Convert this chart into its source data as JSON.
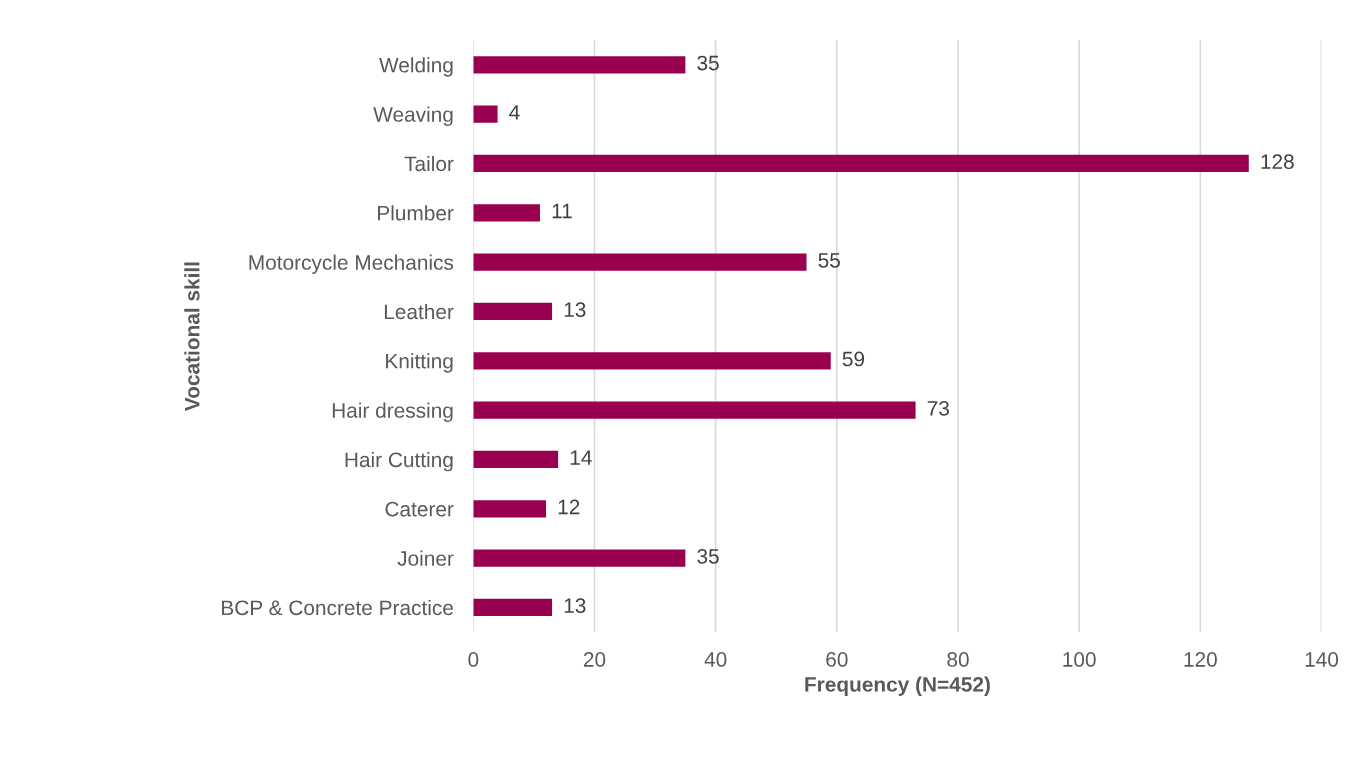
{
  "chart_data": {
    "type": "bar",
    "orientation": "horizontal",
    "xlabel": "Frequency (N=452)",
    "ylabel": "Vocational skill",
    "categories": [
      "Welding",
      "Weaving",
      "Tailor",
      "Plumber",
      "Motorcycle Mechanics",
      "Leather",
      "Knitting",
      "Hair dressing",
      "Hair Cutting",
      "Caterer",
      "Joiner",
      "BCP & Concrete Practice"
    ],
    "values": [
      35,
      4,
      128,
      11,
      55,
      13,
      59,
      73,
      14,
      12,
      35,
      13
    ],
    "color": "#990050",
    "xlim": [
      0,
      140
    ],
    "xticks": [
      0,
      20,
      40,
      60,
      80,
      100,
      120,
      140
    ],
    "grid": "x",
    "data_labels": true
  }
}
